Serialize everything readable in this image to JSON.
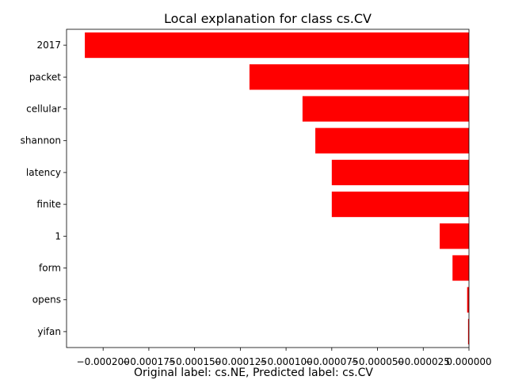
{
  "chart_data": {
    "type": "bar",
    "orientation": "horizontal",
    "title": "Local explanation for class cs.CV",
    "xlabel": "Original label: cs.NE, Predicted label: cs.CV",
    "ylabel": "",
    "categories": [
      "2017",
      "packet",
      "cellular",
      "shannon",
      "latency",
      "finite",
      "1",
      "form",
      "opens",
      "yifan"
    ],
    "values": [
      -0.00021,
      -0.00012,
      -9.1e-05,
      -8.4e-05,
      -7.5e-05,
      -7.5e-05,
      -1.6e-05,
      -9e-06,
      -1e-06,
      -5e-07
    ],
    "xlim": [
      -0.00022,
      0.0
    ],
    "xticks": [
      -0.0002,
      -0.000175,
      -0.00015,
      -0.000125,
      -0.0001,
      -7.5e-05,
      -5e-05,
      -2.5e-05,
      0.0
    ],
    "xtick_labels": [
      "−0.000200",
      "−0.000175",
      "−0.000150",
      "−0.000125",
      "−0.000100",
      "−0.000075",
      "−0.000050",
      "−0.000025",
      "0.000000"
    ],
    "bar_color": "#ff0000",
    "grid": false,
    "legend": "none"
  }
}
